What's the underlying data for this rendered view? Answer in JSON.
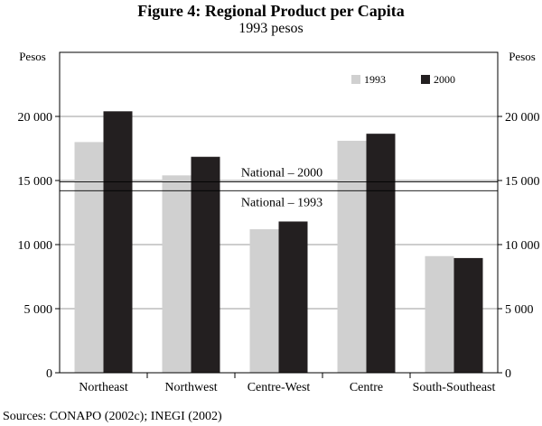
{
  "chart_data": {
    "type": "bar",
    "title": "Figure 4: Regional Product per Capita",
    "subtitle": "1993 pesos",
    "ylabel_left": "Pesos",
    "ylabel_right": "Pesos",
    "categories": [
      "Northeast",
      "Northwest",
      "Centre-West",
      "Centre",
      "South-Southeast"
    ],
    "series": [
      {
        "name": "1993",
        "color": "#d0d0d0",
        "values": [
          18000,
          15400,
          11200,
          18100,
          9100
        ]
      },
      {
        "name": "2000",
        "color": "#231f20",
        "values": [
          20400,
          16850,
          11800,
          18650,
          8950
        ]
      }
    ],
    "ylim": [
      0,
      25000
    ],
    "yticks": [
      0,
      5000,
      10000,
      15000,
      20000
    ],
    "ytick_labels": [
      "0",
      "5 000",
      "10 000",
      "15 000",
      "20 000"
    ],
    "reference_lines": [
      {
        "label": "National – 2000",
        "value": 14900
      },
      {
        "label": "National – 1993",
        "value": 14200
      }
    ],
    "legend_position": "top-right",
    "source": "Sources: CONAPO (2002c); INEGI (2002)"
  }
}
